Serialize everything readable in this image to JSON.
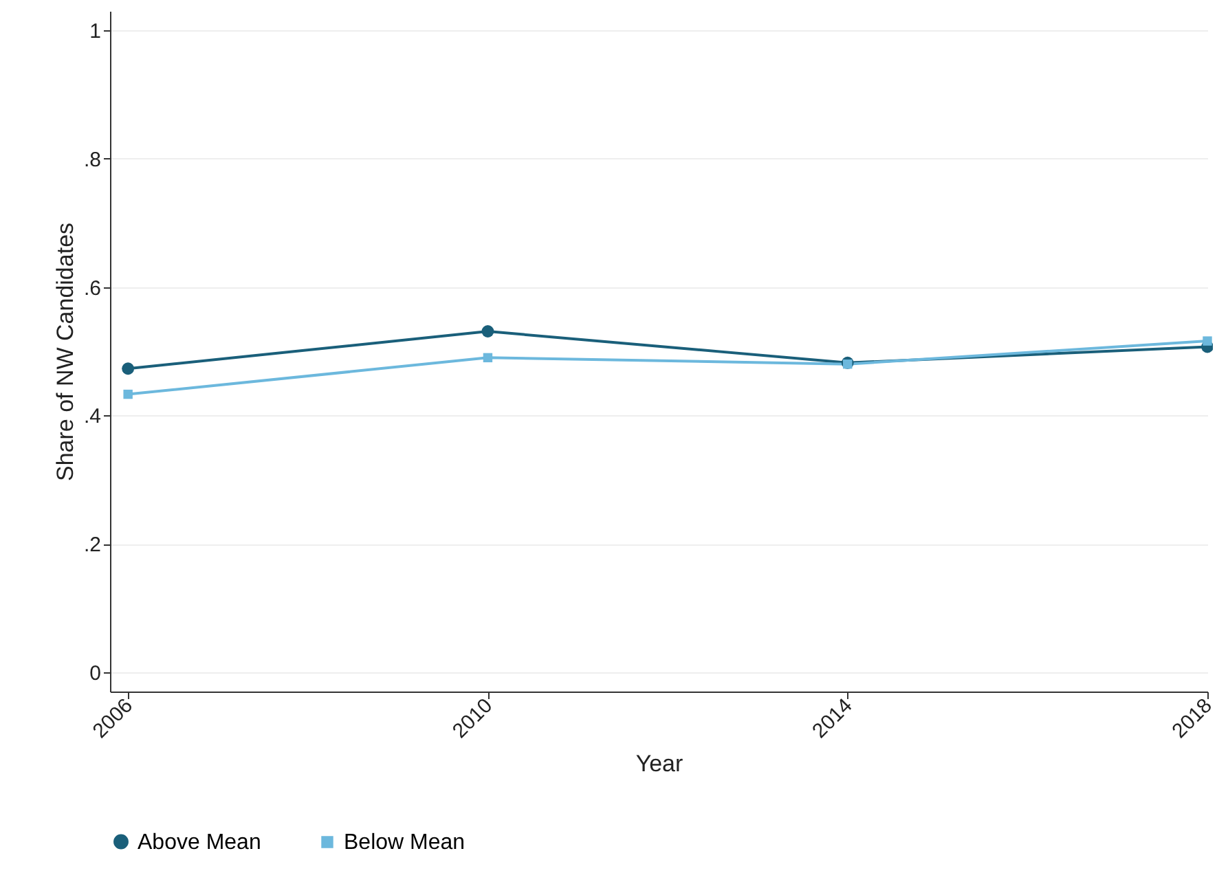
{
  "chart_data": {
    "type": "line",
    "xlabel": "Year",
    "ylabel": "Share of NW Candidates",
    "x": [
      2006,
      2010,
      2014,
      2018
    ],
    "series": [
      {
        "name": "Above Mean",
        "color": "#1a5f7a",
        "marker": "circle",
        "values": [
          0.473,
          0.531,
          0.482,
          0.507
        ]
      },
      {
        "name": "Below Mean",
        "color": "#6cb8dd",
        "marker": "square",
        "values": [
          0.433,
          0.49,
          0.48,
          0.516
        ]
      }
    ],
    "xlim": [
      2005.8,
      2018
    ],
    "xticks": [
      2006,
      2010,
      2014,
      2018
    ],
    "ylim": [
      -0.03,
      1.03
    ],
    "yticks": [
      {
        "value": 0,
        "label": "0"
      },
      {
        "value": 0.2,
        "label": ".2"
      },
      {
        "value": 0.4,
        "label": ".4"
      },
      {
        "value": 0.6,
        "label": ".6"
      },
      {
        "value": 0.8,
        "label": ".8"
      },
      {
        "value": 1,
        "label": "1"
      }
    ],
    "grid": "y",
    "legend": "bottom",
    "line_style": "solid"
  }
}
